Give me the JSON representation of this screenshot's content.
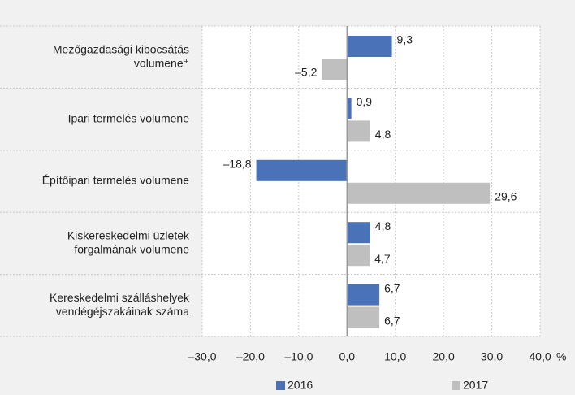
{
  "chart_data": {
    "type": "hbar",
    "categories": [
      [
        "Mezőgazdasági kibocsátás",
        "volumene⁺"
      ],
      [
        "Ipari termelés volumene"
      ],
      [
        "Építőipari termelés volumene"
      ],
      [
        "Kiskereskedelmi üzletek",
        "forgalmának volumene"
      ],
      [
        "Kereskedelmi szálláshelyek",
        "vendégéjszakáinak száma"
      ]
    ],
    "series": [
      {
        "name": "2016",
        "color": "#4a72b8",
        "values": [
          9.3,
          0.9,
          -18.8,
          4.8,
          6.7
        ],
        "value_labels": [
          "9,3",
          "0,9",
          "–18,8",
          "4,8",
          "6,7"
        ]
      },
      {
        "name": "2017",
        "color": "#bfbfbf",
        "values": [
          -5.2,
          4.8,
          29.6,
          4.7,
          6.7
        ],
        "value_labels": [
          "–5,2",
          "4,8",
          "29,6",
          "4,7",
          "6,7"
        ]
      }
    ],
    "xlim": [
      -30,
      40
    ],
    "xticks": [
      {
        "value": -30,
        "label": "–30,0"
      },
      {
        "value": -20,
        "label": "–20,0"
      },
      {
        "value": -10,
        "label": "–10,0"
      },
      {
        "value": 0,
        "label": "0,0"
      },
      {
        "value": 10,
        "label": "10,0"
      },
      {
        "value": 20,
        "label": "20,0"
      },
      {
        "value": 30,
        "label": "30,0"
      },
      {
        "value": 40,
        "label": "40,0"
      }
    ],
    "x_unit": "%",
    "grid": true,
    "legend": "bottom"
  }
}
